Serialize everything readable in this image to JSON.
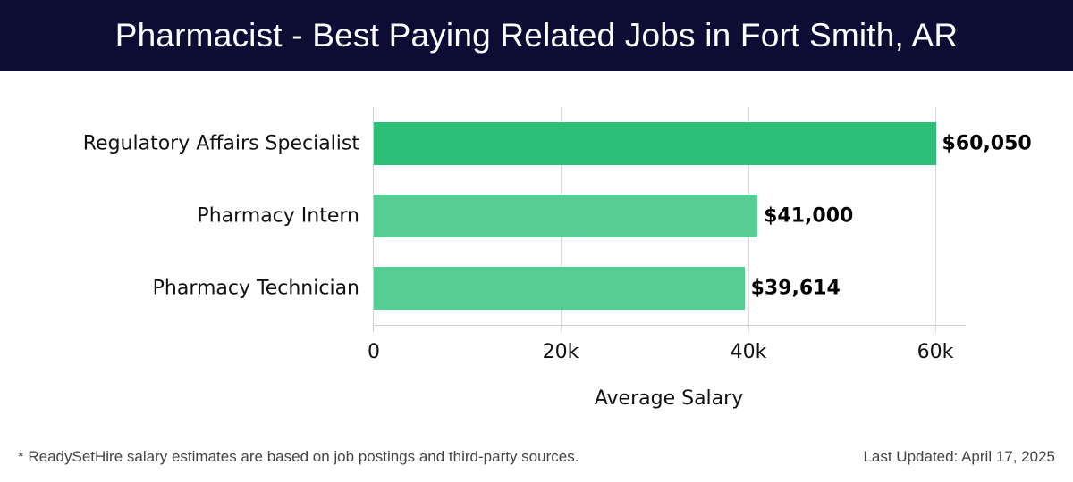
{
  "header": {
    "title": "Pharmacist - Best Paying Related Jobs in Fort Smith, AR"
  },
  "chart_data": {
    "type": "bar",
    "orientation": "horizontal",
    "title": "Pharmacist - Best Paying Related Jobs in Fort Smith, AR",
    "categories": [
      "Regulatory Affairs Specialist",
      "Pharmacy Intern",
      "Pharmacy Technician"
    ],
    "values": [
      60050,
      41000,
      39614
    ],
    "value_labels": [
      "$60,050",
      "$41,000",
      "$39,614"
    ],
    "xlabel": "Average Salary",
    "ylabel": "",
    "xlim": [
      0,
      63300
    ],
    "xticks": [
      0,
      20000,
      40000,
      60000
    ],
    "xtick_labels": [
      "0",
      "20k",
      "40k",
      "60k"
    ],
    "grid": "vertical",
    "colors": [
      "#2bbf77",
      "#57cd96",
      "#57cd96"
    ]
  },
  "footer": {
    "note": "* ReadySetHire salary estimates are based on job postings and third-party sources.",
    "updated": "Last Updated: April 17, 2025"
  }
}
